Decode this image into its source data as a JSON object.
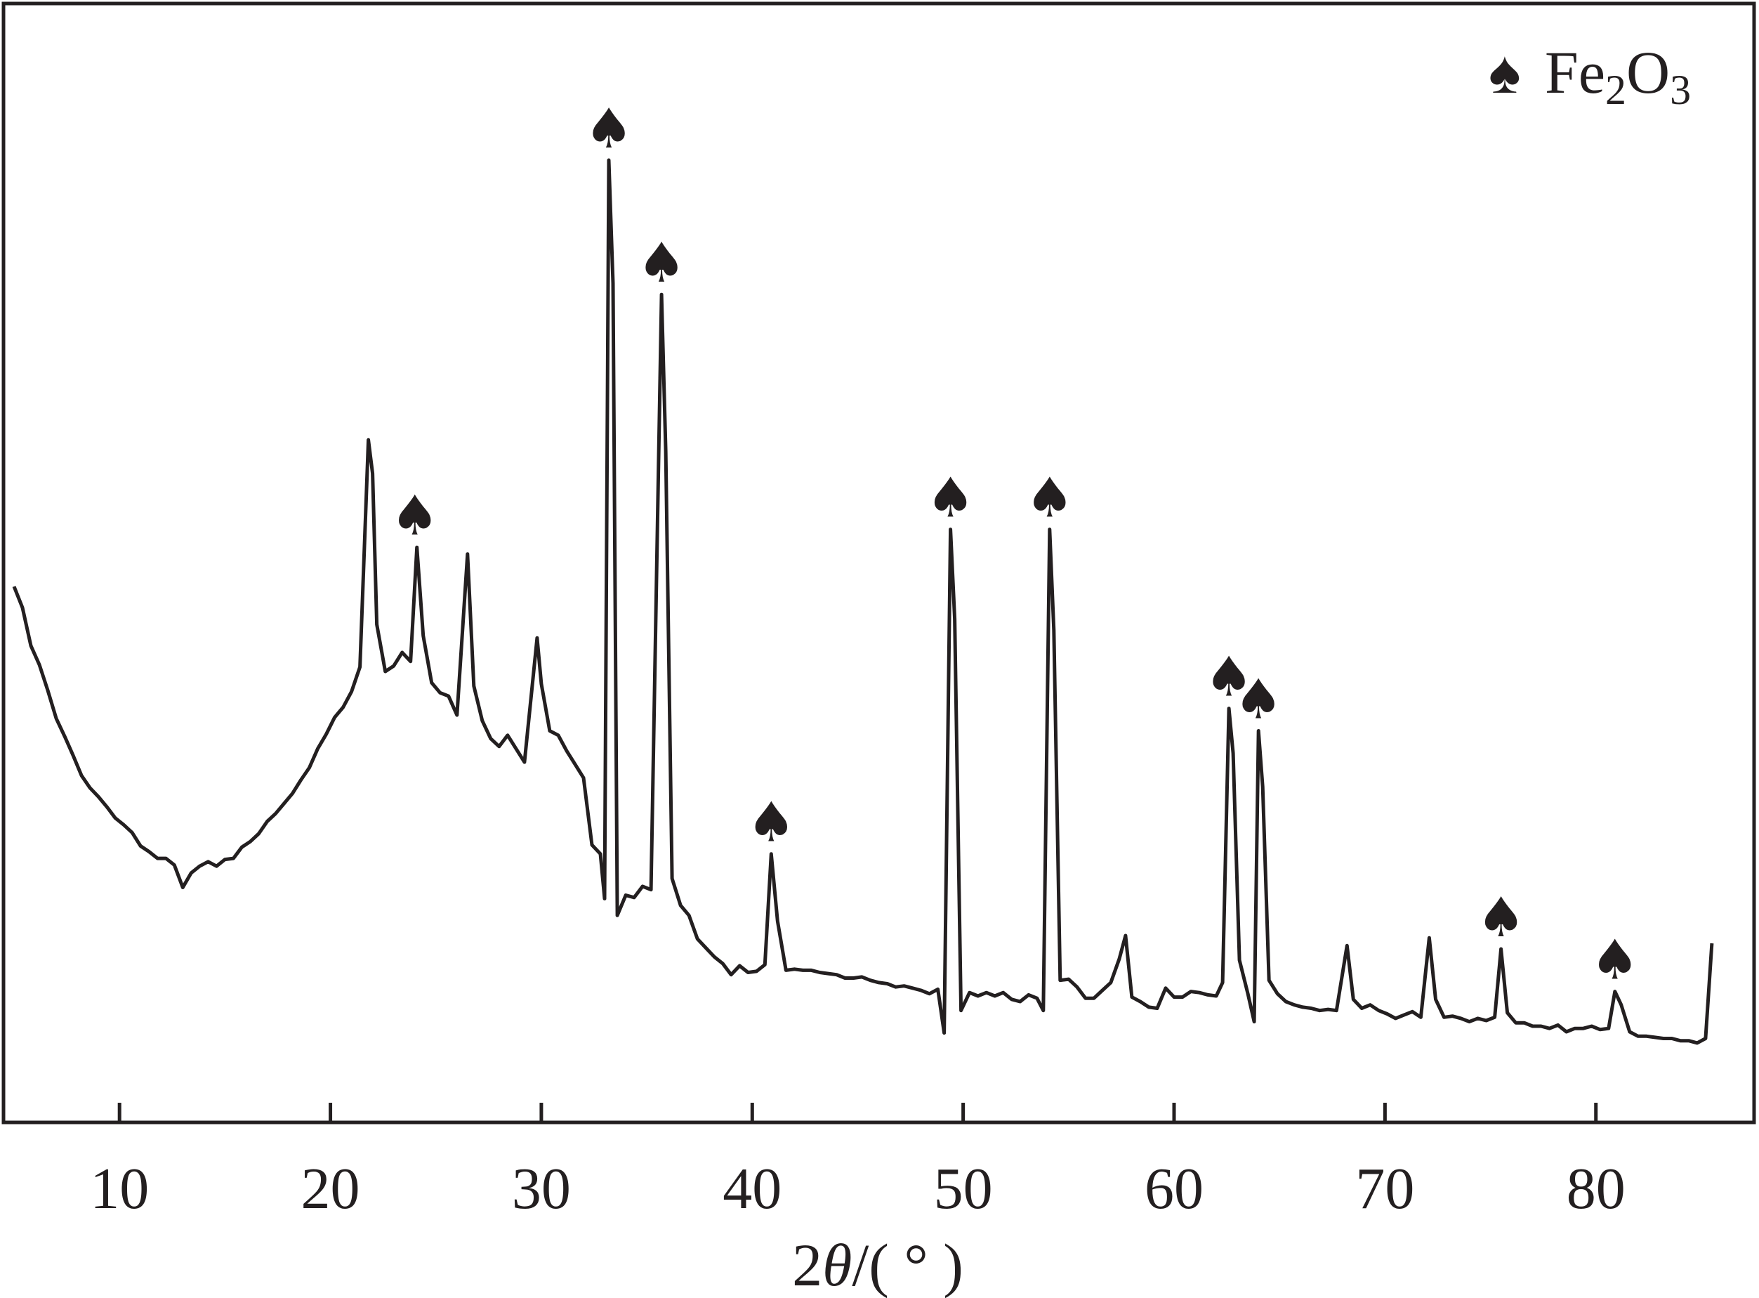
{
  "chart_data": {
    "type": "line",
    "xlabel": {
      "prefix": "2",
      "symbol": "θ",
      "suffix": "/( ° )"
    },
    "ylabel": "",
    "xlim": [
      4.5,
      87.5
    ],
    "ylim": [
      0,
      100
    ],
    "xticks": [
      10,
      20,
      30,
      40,
      50,
      60,
      70,
      80
    ],
    "y_axis_ticks_shown": false,
    "grid": false,
    "legend": {
      "position": "top-right",
      "marker_icon": "spade-icon",
      "marker_glyph": "♠",
      "entries": [
        {
          "parts": [
            {
              "t": "Fe",
              "sub": false
            },
            {
              "t": "2",
              "sub": true
            },
            {
              "t": "O",
              "sub": false
            },
            {
              "t": "3",
              "sub": true
            }
          ]
        }
      ]
    },
    "line_color": "#231f20",
    "series": [
      {
        "points": [
          [
            5.0,
            47.9
          ],
          [
            5.4,
            46.0
          ],
          [
            5.8,
            42.6
          ],
          [
            6.2,
            40.9
          ],
          [
            6.6,
            38.6
          ],
          [
            7.0,
            36.1
          ],
          [
            7.4,
            34.5
          ],
          [
            7.8,
            32.8
          ],
          [
            8.2,
            31.0
          ],
          [
            8.6,
            29.9
          ],
          [
            9.0,
            29.1
          ],
          [
            9.4,
            28.2
          ],
          [
            9.8,
            27.2
          ],
          [
            10.2,
            26.6
          ],
          [
            10.6,
            25.9
          ],
          [
            11.0,
            24.7
          ],
          [
            11.4,
            24.2
          ],
          [
            11.8,
            23.6
          ],
          [
            12.2,
            23.6
          ],
          [
            12.6,
            23.0
          ],
          [
            13.0,
            21.0
          ],
          [
            13.4,
            22.3
          ],
          [
            13.8,
            22.9
          ],
          [
            14.2,
            23.3
          ],
          [
            14.6,
            22.9
          ],
          [
            15.0,
            23.5
          ],
          [
            15.4,
            23.6
          ],
          [
            15.8,
            24.6
          ],
          [
            16.2,
            25.1
          ],
          [
            16.6,
            25.8
          ],
          [
            17.0,
            26.9
          ],
          [
            17.4,
            27.6
          ],
          [
            17.8,
            28.5
          ],
          [
            18.2,
            29.4
          ],
          [
            18.6,
            30.6
          ],
          [
            19.0,
            31.7
          ],
          [
            19.4,
            33.4
          ],
          [
            19.8,
            34.7
          ],
          [
            20.2,
            36.2
          ],
          [
            20.6,
            37.1
          ],
          [
            21.0,
            38.5
          ],
          [
            21.4,
            40.7
          ],
          [
            21.8,
            61.0
          ],
          [
            22.0,
            58.0
          ],
          [
            22.2,
            44.5
          ],
          [
            22.6,
            40.3
          ],
          [
            23.0,
            40.8
          ],
          [
            23.4,
            42.0
          ],
          [
            23.8,
            41.2
          ],
          [
            24.1,
            51.4
          ],
          [
            24.4,
            43.5
          ],
          [
            24.8,
            39.3
          ],
          [
            25.2,
            38.4
          ],
          [
            25.6,
            38.1
          ],
          [
            26.0,
            36.4
          ],
          [
            26.5,
            50.8
          ],
          [
            26.8,
            39.0
          ],
          [
            27.2,
            35.9
          ],
          [
            27.6,
            34.3
          ],
          [
            28.0,
            33.6
          ],
          [
            28.4,
            34.6
          ],
          [
            28.8,
            33.4
          ],
          [
            29.2,
            32.2
          ],
          [
            29.8,
            43.3
          ],
          [
            30.0,
            39.2
          ],
          [
            30.4,
            35.0
          ],
          [
            30.8,
            34.6
          ],
          [
            31.2,
            33.2
          ],
          [
            31.6,
            32.0
          ],
          [
            32.0,
            30.8
          ],
          [
            32.4,
            24.8
          ],
          [
            32.8,
            24.0
          ],
          [
            33.0,
            20.0
          ],
          [
            33.2,
            86.0
          ],
          [
            33.4,
            75.0
          ],
          [
            33.6,
            18.5
          ],
          [
            34.0,
            20.3
          ],
          [
            34.4,
            20.1
          ],
          [
            34.8,
            21.1
          ],
          [
            35.2,
            20.8
          ],
          [
            35.7,
            74.0
          ],
          [
            35.9,
            60.0
          ],
          [
            36.2,
            21.8
          ],
          [
            36.6,
            19.4
          ],
          [
            37.0,
            18.5
          ],
          [
            37.4,
            16.4
          ],
          [
            37.8,
            15.6
          ],
          [
            38.2,
            14.8
          ],
          [
            38.6,
            14.2
          ],
          [
            39.0,
            13.2
          ],
          [
            39.4,
            14.0
          ],
          [
            39.8,
            13.4
          ],
          [
            40.2,
            13.5
          ],
          [
            40.6,
            14.1
          ],
          [
            40.9,
            24.0
          ],
          [
            41.2,
            18.0
          ],
          [
            41.6,
            13.6
          ],
          [
            42.0,
            13.7
          ],
          [
            42.4,
            13.6
          ],
          [
            42.8,
            13.6
          ],
          [
            43.2,
            13.4
          ],
          [
            43.6,
            13.3
          ],
          [
            44.0,
            13.2
          ],
          [
            44.4,
            12.9
          ],
          [
            44.8,
            12.9
          ],
          [
            45.2,
            13.0
          ],
          [
            45.6,
            12.7
          ],
          [
            46.0,
            12.5
          ],
          [
            46.4,
            12.4
          ],
          [
            46.8,
            12.1
          ],
          [
            47.2,
            12.2
          ],
          [
            47.6,
            12.0
          ],
          [
            48.0,
            11.8
          ],
          [
            48.4,
            11.5
          ],
          [
            48.8,
            11.9
          ],
          [
            49.1,
            8.0
          ],
          [
            49.4,
            53.0
          ],
          [
            49.6,
            45.0
          ],
          [
            49.9,
            10.0
          ],
          [
            50.3,
            11.6
          ],
          [
            50.7,
            11.3
          ],
          [
            51.1,
            11.6
          ],
          [
            51.5,
            11.3
          ],
          [
            51.9,
            11.6
          ],
          [
            52.3,
            11.0
          ],
          [
            52.7,
            10.8
          ],
          [
            53.1,
            11.4
          ],
          [
            53.5,
            11.1
          ],
          [
            53.8,
            10.0
          ],
          [
            54.1,
            53.0
          ],
          [
            54.3,
            44.0
          ],
          [
            54.6,
            12.7
          ],
          [
            55.0,
            12.8
          ],
          [
            55.4,
            12.1
          ],
          [
            55.8,
            11.1
          ],
          [
            56.2,
            11.1
          ],
          [
            56.6,
            11.8
          ],
          [
            57.0,
            12.5
          ],
          [
            57.4,
            14.6
          ],
          [
            57.7,
            16.7
          ],
          [
            58.0,
            11.2
          ],
          [
            58.4,
            10.8
          ],
          [
            58.8,
            10.3
          ],
          [
            59.2,
            10.2
          ],
          [
            59.6,
            12.0
          ],
          [
            60.0,
            11.2
          ],
          [
            60.4,
            11.2
          ],
          [
            60.8,
            11.7
          ],
          [
            61.2,
            11.6
          ],
          [
            61.6,
            11.4
          ],
          [
            62.0,
            11.3
          ],
          [
            62.3,
            12.5
          ],
          [
            62.6,
            37.0
          ],
          [
            62.8,
            33.0
          ],
          [
            63.1,
            14.5
          ],
          [
            63.5,
            11.5
          ],
          [
            63.8,
            9.0
          ],
          [
            64.0,
            35.0
          ],
          [
            64.2,
            30.0
          ],
          [
            64.5,
            12.7
          ],
          [
            64.9,
            11.5
          ],
          [
            65.3,
            10.8
          ],
          [
            65.7,
            10.5
          ],
          [
            66.1,
            10.3
          ],
          [
            66.5,
            10.2
          ],
          [
            66.9,
            10.0
          ],
          [
            67.3,
            10.1
          ],
          [
            67.7,
            10.0
          ],
          [
            68.2,
            15.8
          ],
          [
            68.5,
            11.0
          ],
          [
            68.9,
            10.2
          ],
          [
            69.3,
            10.5
          ],
          [
            69.7,
            10.0
          ],
          [
            70.1,
            9.7
          ],
          [
            70.5,
            9.3
          ],
          [
            70.9,
            9.6
          ],
          [
            71.3,
            9.9
          ],
          [
            71.7,
            9.4
          ],
          [
            72.1,
            16.5
          ],
          [
            72.4,
            11.0
          ],
          [
            72.8,
            9.4
          ],
          [
            73.2,
            9.5
          ],
          [
            73.6,
            9.3
          ],
          [
            74.0,
            9.0
          ],
          [
            74.4,
            9.3
          ],
          [
            74.8,
            9.1
          ],
          [
            75.2,
            9.4
          ],
          [
            75.5,
            15.5
          ],
          [
            75.8,
            9.8
          ],
          [
            76.2,
            8.9
          ],
          [
            76.6,
            8.9
          ],
          [
            77.0,
            8.6
          ],
          [
            77.4,
            8.6
          ],
          [
            77.8,
            8.4
          ],
          [
            78.2,
            8.7
          ],
          [
            78.6,
            8.1
          ],
          [
            79.0,
            8.4
          ],
          [
            79.4,
            8.4
          ],
          [
            79.8,
            8.6
          ],
          [
            80.2,
            8.3
          ],
          [
            80.6,
            8.4
          ],
          [
            80.9,
            11.7
          ],
          [
            81.2,
            10.5
          ],
          [
            81.6,
            8.1
          ],
          [
            82.0,
            7.7
          ],
          [
            82.4,
            7.7
          ],
          [
            82.8,
            7.6
          ],
          [
            83.2,
            7.5
          ],
          [
            83.6,
            7.5
          ],
          [
            84.0,
            7.3
          ],
          [
            84.4,
            7.3
          ],
          [
            84.8,
            7.1
          ],
          [
            85.2,
            7.5
          ],
          [
            85.5,
            16.0
          ]
        ]
      }
    ],
    "annotations": [
      {
        "x": 24.0,
        "y": 51.4,
        "marker": "spade-icon"
      },
      {
        "x": 33.2,
        "y": 86.0,
        "marker": "spade-icon"
      },
      {
        "x": 35.7,
        "y": 74.0,
        "marker": "spade-icon"
      },
      {
        "x": 40.9,
        "y": 24.0,
        "marker": "spade-icon"
      },
      {
        "x": 49.4,
        "y": 53.0,
        "marker": "spade-icon"
      },
      {
        "x": 54.1,
        "y": 53.0,
        "marker": "spade-icon"
      },
      {
        "x": 62.6,
        "y": 37.0,
        "marker": "spade-icon"
      },
      {
        "x": 64.0,
        "y": 35.0,
        "marker": "spade-icon"
      },
      {
        "x": 75.5,
        "y": 15.5,
        "marker": "spade-icon"
      },
      {
        "x": 80.9,
        "y": 11.7,
        "marker": "spade-icon"
      }
    ]
  }
}
